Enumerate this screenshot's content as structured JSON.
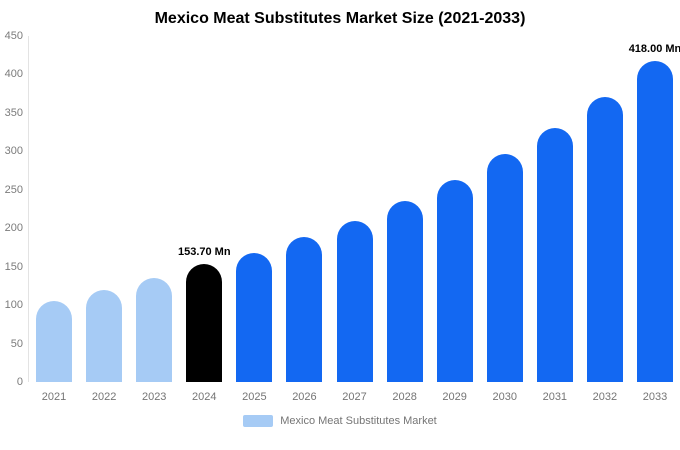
{
  "chart_data": {
    "type": "bar",
    "title": "Mexico Meat Substitutes Market Size (2021-2033)",
    "categories": [
      "2021",
      "2022",
      "2023",
      "2024",
      "2025",
      "2026",
      "2027",
      "2028",
      "2029",
      "2030",
      "2031",
      "2032",
      "2033"
    ],
    "values": [
      105,
      120,
      135,
      153.7,
      168,
      188,
      210,
      235,
      263,
      296,
      331,
      371,
      418
    ],
    "ylim": [
      0,
      450
    ],
    "y_ticks": [
      450,
      400,
      350,
      300,
      250,
      200,
      150,
      100,
      50,
      0
    ],
    "bar_colors": [
      "#a6cbf5",
      "#a6cbf5",
      "#a6cbf5",
      "#000000",
      "#1368f2",
      "#1368f2",
      "#1368f2",
      "#1368f2",
      "#1368f2",
      "#1368f2",
      "#1368f2",
      "#1368f2",
      "#1368f2"
    ],
    "annotations": [
      {
        "index": 3,
        "text": "153.70 Mn"
      },
      {
        "index": 12,
        "text": "418.00 Mn"
      }
    ],
    "grid": false,
    "legend_position": "bottom",
    "xlabel": "",
    "ylabel": ""
  },
  "legend": {
    "label": "Mexico Meat Substitutes Market",
    "swatch_color": "#a6cbf5"
  },
  "colors": {
    "light_blue": "#a6cbf5",
    "blue": "#1368f2",
    "black": "#000000",
    "axis_text": "#7b7b7b",
    "background": "#ffffff"
  }
}
